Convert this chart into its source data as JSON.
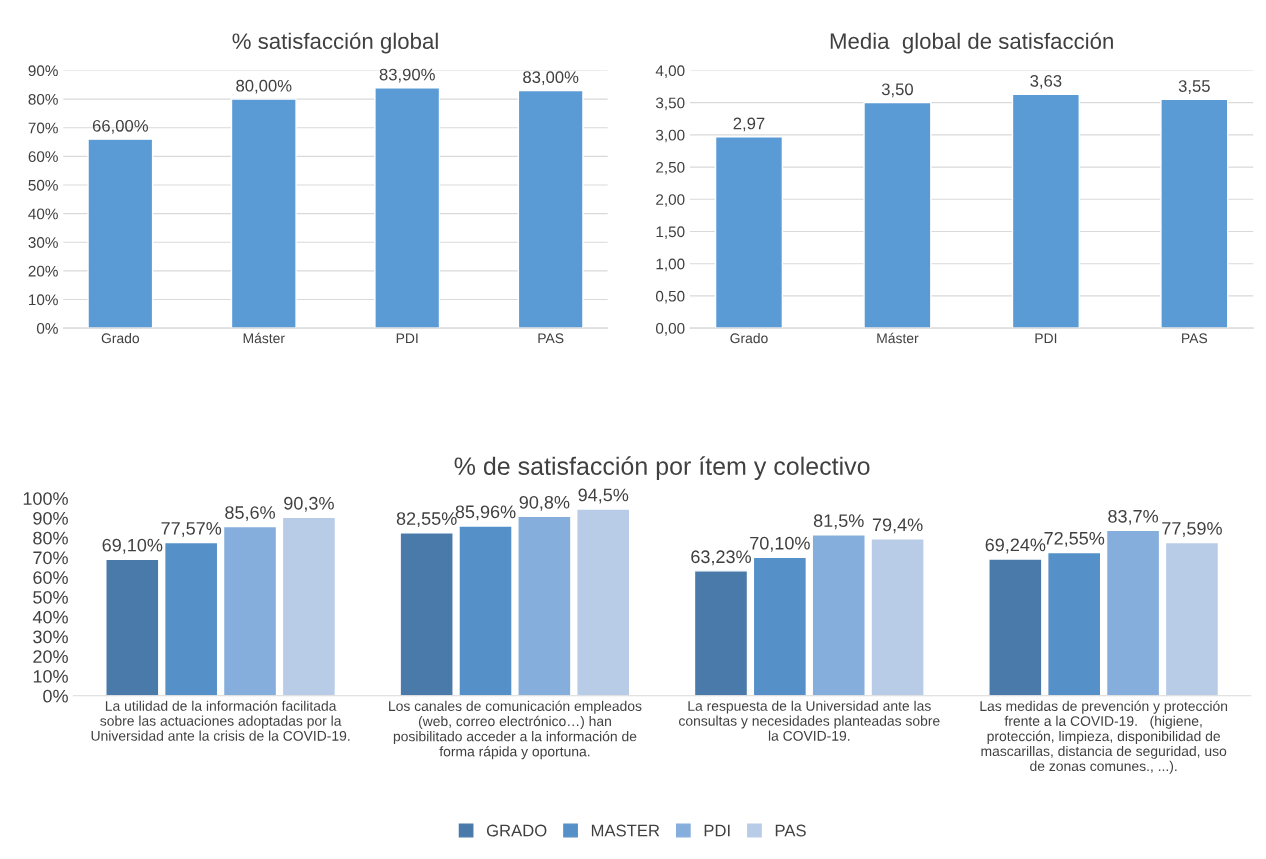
{
  "chart_data": [
    {
      "type": "bar",
      "title": "% satisfacción global",
      "categories": [
        "Grado",
        "Máster",
        "PDI",
        "PAS"
      ],
      "values": [
        66,
        80,
        83.9,
        83
      ],
      "value_labels": [
        "66,00%",
        "80,00%",
        "83,90%",
        "83,00%"
      ],
      "color": "#5b9bd5",
      "ylim": [
        0,
        90
      ],
      "yticks": [
        {
          "value": 0,
          "label": "0%"
        },
        {
          "value": 10,
          "label": "10%"
        },
        {
          "value": 20,
          "label": "20%"
        },
        {
          "value": 30,
          "label": "30%"
        },
        {
          "value": 40,
          "label": "40%"
        },
        {
          "value": 50,
          "label": "50%"
        },
        {
          "value": 60,
          "label": "60%"
        },
        {
          "value": 70,
          "label": "70%"
        },
        {
          "value": 80,
          "label": "80%"
        },
        {
          "value": 90,
          "label": "90%"
        }
      ],
      "grid": "y"
    },
    {
      "type": "bar",
      "title": "Media  global de satisfacción",
      "categories": [
        "Grado",
        "Máster",
        "PDI",
        "PAS"
      ],
      "values": [
        2.97,
        3.5,
        3.63,
        3.55
      ],
      "value_labels": [
        "2,97",
        "3,50",
        "3,63",
        "3,55"
      ],
      "color": "#5b9bd5",
      "ylim": [
        0,
        4
      ],
      "yticks": [
        {
          "value": 0,
          "label": "0,00"
        },
        {
          "value": 0.5,
          "label": "0,50"
        },
        {
          "value": 1,
          "label": "1,00"
        },
        {
          "value": 1.5,
          "label": "1,50"
        },
        {
          "value": 2,
          "label": "2,00"
        },
        {
          "value": 2.5,
          "label": "2,50"
        },
        {
          "value": 3,
          "label": "3,00"
        },
        {
          "value": 3.5,
          "label": "3,50"
        },
        {
          "value": 4,
          "label": "4,00"
        }
      ],
      "grid": "y"
    },
    {
      "type": "bar",
      "title": "% de satisfacción por ítem y colectivo",
      "categories": [
        "La utilidad de la información facilitada sobre las actuaciones adoptadas por la Universidad ante la crisis de la COVID-19.",
        "Los canales de comunicación empleados (web, correo electrónico…) han posibilitado acceder a la información de forma rápida y oportuna.",
        "La respuesta de la Universidad ante las consultas y necesidades planteadas sobre la COVID-19.",
        "Las medidas de prevención y protección frente a la COVID-19.   (higiene, protección, limpieza, disponibilidad de mascarillas, distancia de seguridad, uso de zonas comunes., ...)."
      ],
      "series": [
        {
          "name": "GRADO",
          "color": "#4a7aaa",
          "values": [
            69.1,
            82.55,
            63.23,
            69.24
          ],
          "value_labels": [
            "69,10%",
            "82,55%",
            "63,23%",
            "69,24%"
          ]
        },
        {
          "name": "MASTER",
          "color": "#5590c8",
          "values": [
            77.57,
            85.96,
            70.1,
            72.55
          ],
          "value_labels": [
            "77,57%",
            "85,96%",
            "70,10%",
            "72,55%"
          ]
        },
        {
          "name": "PDI",
          "color": "#86aedc",
          "values": [
            85.6,
            90.8,
            81.5,
            83.7
          ],
          "value_labels": [
            "85,6%",
            "90,8%",
            "81,5%",
            "83,7%"
          ]
        },
        {
          "name": "PAS",
          "color": "#b8cce8",
          "values": [
            90.3,
            94.5,
            79.4,
            77.59
          ],
          "value_labels": [
            "90,3%",
            "94,5%",
            "79,4%",
            "77,59%"
          ]
        }
      ],
      "ylim": [
        0,
        100
      ],
      "yticks": [
        {
          "value": 0,
          "label": "0%"
        },
        {
          "value": 10,
          "label": "10%"
        },
        {
          "value": 20,
          "label": "20%"
        },
        {
          "value": 30,
          "label": "30%"
        },
        {
          "value": 40,
          "label": "40%"
        },
        {
          "value": 50,
          "label": "50%"
        },
        {
          "value": 60,
          "label": "60%"
        },
        {
          "value": 70,
          "label": "70%"
        },
        {
          "value": 80,
          "label": "80%"
        },
        {
          "value": 90,
          "label": "90%"
        },
        {
          "value": 100,
          "label": "100%"
        }
      ],
      "legend": "bottom"
    }
  ]
}
